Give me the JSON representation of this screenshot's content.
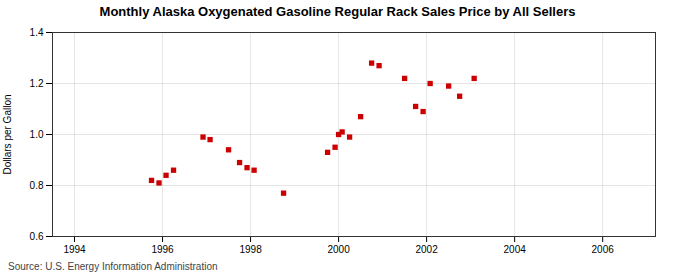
{
  "chart_data": {
    "type": "scatter",
    "title": "Monthly Alaska Oxygenated Gasoline Regular Rack Sales Price by All Sellers",
    "ylabel": "Dollars per Gallon",
    "source": "Source: U.S. Energy Information Administration",
    "color": "#cc0000",
    "marker": "square",
    "grid": true,
    "xlim": [
      1993.5,
      2007.2
    ],
    "ylim": [
      0.6,
      1.4
    ],
    "xticks": [
      1994,
      1996,
      1998,
      2000,
      2002,
      2004,
      2006
    ],
    "yticks": [
      0.6,
      0.8,
      {
        "value": 1.0,
        "label": "1.0"
      },
      1.2,
      1.4
    ],
    "x": [
      1995.75,
      1995.92,
      1996.08,
      1996.25,
      1996.92,
      1997.08,
      1997.5,
      1997.75,
      1997.92,
      1998.08,
      1998.75,
      1999.75,
      1999.92,
      2000.0,
      2000.08,
      2000.25,
      2000.5,
      2000.75,
      2000.92,
      2001.5,
      2001.75,
      2001.92,
      2002.08,
      2002.5,
      2002.75,
      2003.08
    ],
    "values": [
      0.82,
      0.81,
      0.84,
      0.86,
      0.99,
      0.98,
      0.94,
      0.89,
      0.87,
      0.86,
      0.77,
      0.93,
      0.95,
      1.0,
      1.01,
      0.99,
      1.07,
      1.28,
      1.27,
      1.22,
      1.11,
      1.09,
      1.2,
      1.19,
      1.15,
      1.22
    ]
  }
}
